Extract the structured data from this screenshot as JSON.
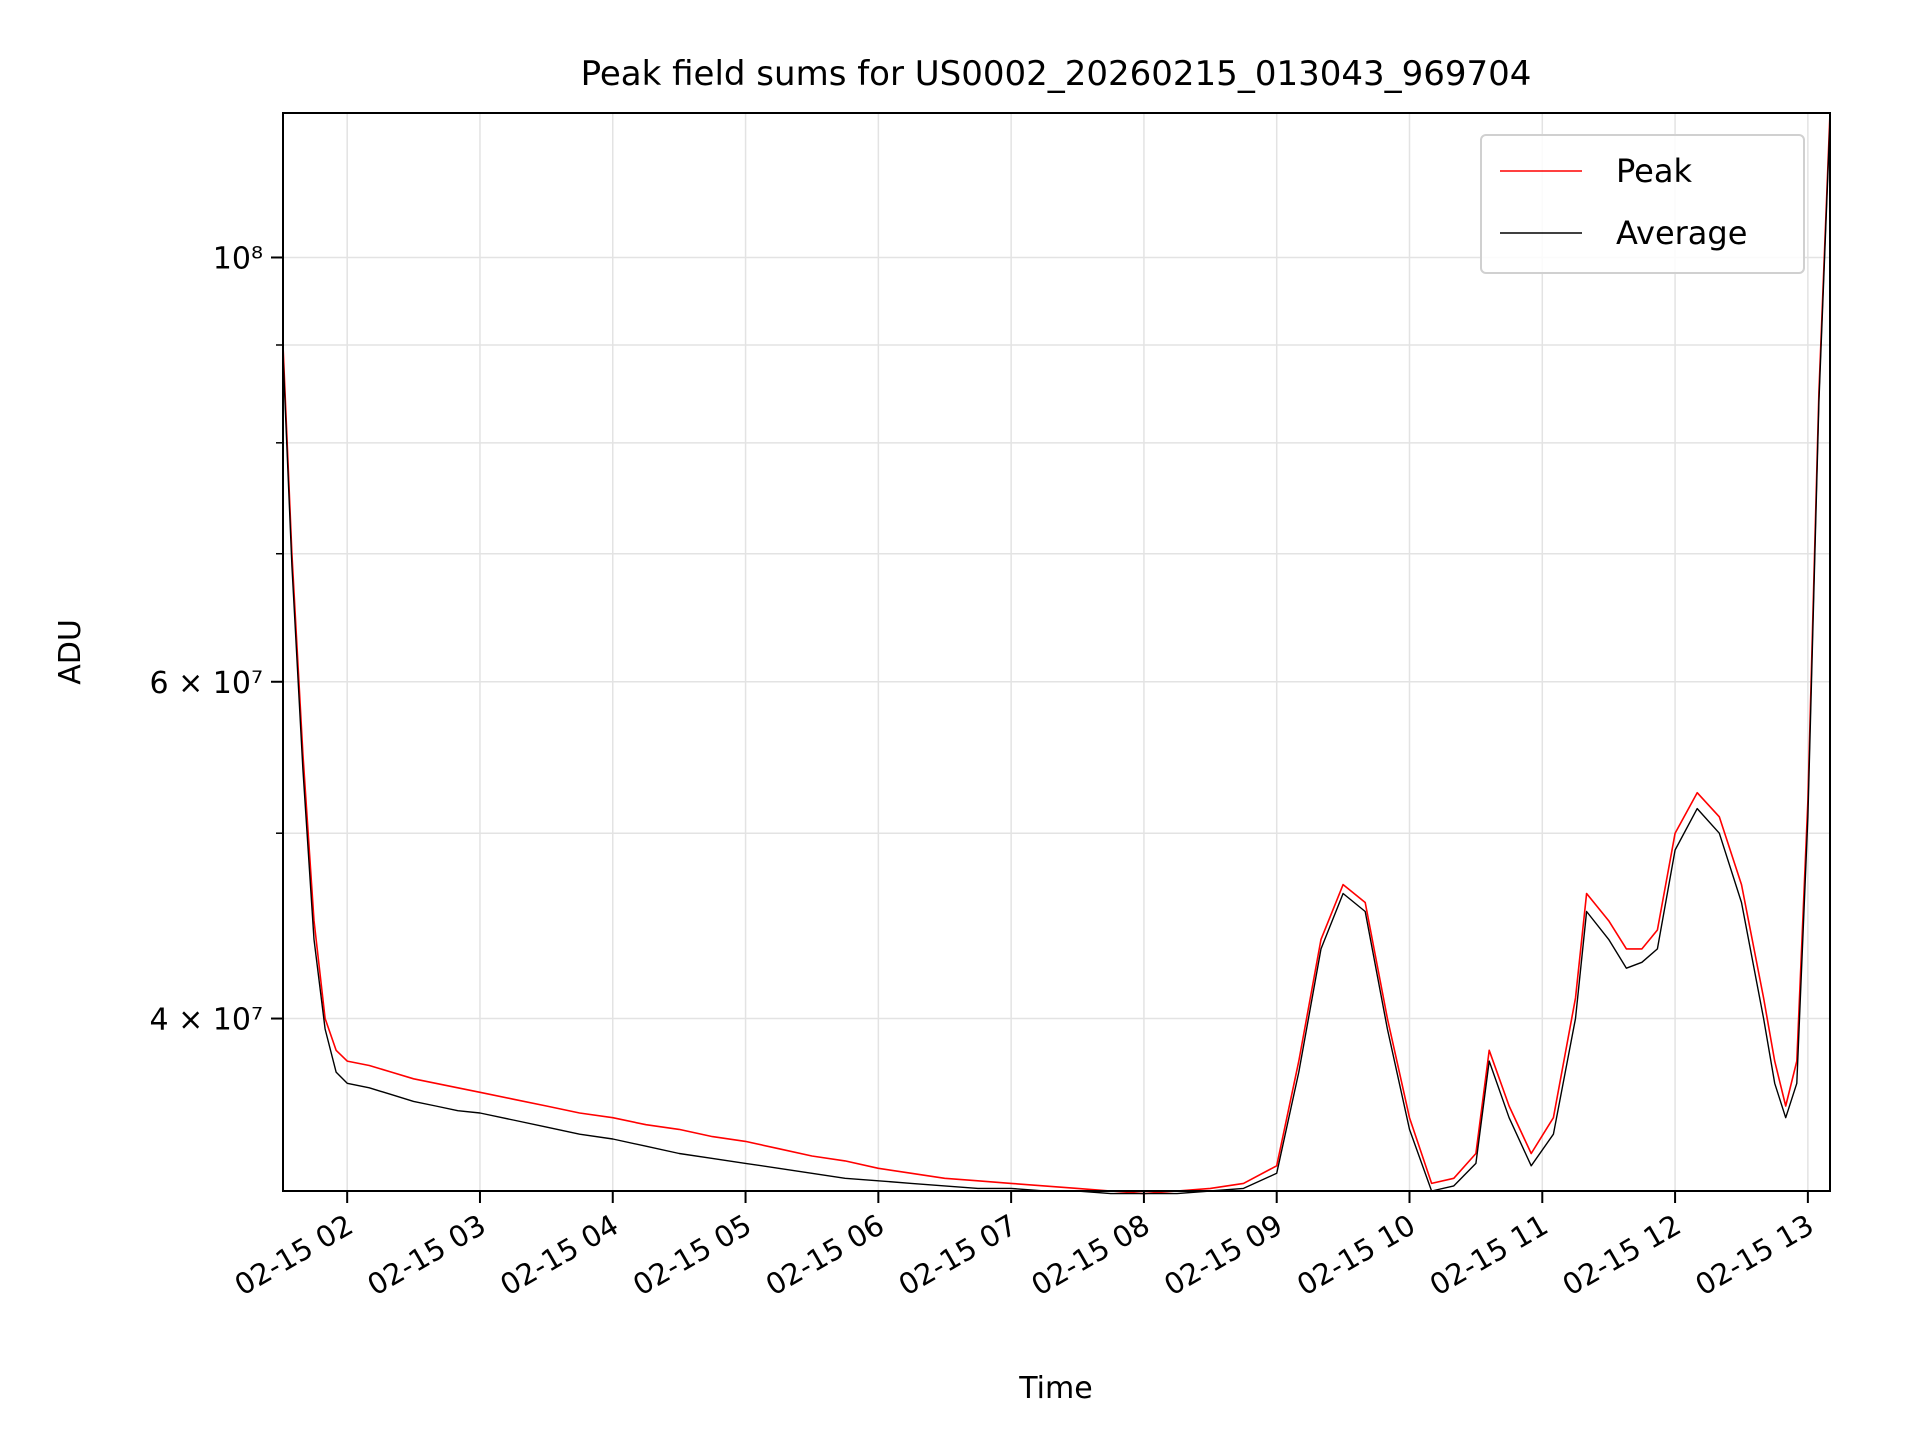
{
  "chart_data": {
    "type": "line",
    "title": "Peak field sums for US0002_20260215_013043_969704",
    "xlabel": "Time",
    "ylabel": "ADU",
    "y_scale": "log",
    "ylim": [
      32500000,
      119000000
    ],
    "xlim": [
      "02-15 01:31",
      "02-15 13:10"
    ],
    "grid": true,
    "legend_position": "top-right",
    "x_ticks": [
      {
        "time": "02-15 02:00",
        "label": "02-15 02"
      },
      {
        "time": "02-15 03:00",
        "label": "02-15 03"
      },
      {
        "time": "02-15 04:00",
        "label": "02-15 04"
      },
      {
        "time": "02-15 05:00",
        "label": "02-15 05"
      },
      {
        "time": "02-15 06:00",
        "label": "02-15 06"
      },
      {
        "time": "02-15 07:00",
        "label": "02-15 07"
      },
      {
        "time": "02-15 08:00",
        "label": "02-15 08"
      },
      {
        "time": "02-15 09:00",
        "label": "02-15 09"
      },
      {
        "time": "02-15 10:00",
        "label": "02-15 10"
      },
      {
        "time": "02-15 11:00",
        "label": "02-15 11"
      },
      {
        "time": "02-15 12:00",
        "label": "02-15 12"
      },
      {
        "time": "02-15 13:00",
        "label": "02-15 13"
      }
    ],
    "y_ticks": [
      {
        "value": 40000000,
        "label": "4 × 10⁷"
      },
      {
        "value": 60000000,
        "label": "6 × 10⁷"
      },
      {
        "value": 100000000,
        "label": "10⁸"
      }
    ],
    "y_minor_ticks": [
      30000000,
      50000000,
      70000000,
      80000000,
      90000000
    ],
    "series": [
      {
        "name": "Peak",
        "color": "#ff0000",
        "x": [
          "02-15 01:31",
          "02-15 01:35",
          "02-15 01:40",
          "02-15 01:45",
          "02-15 01:50",
          "02-15 01:55",
          "02-15 02:00",
          "02-15 02:10",
          "02-15 02:20",
          "02-15 02:30",
          "02-15 02:40",
          "02-15 02:50",
          "02-15 03:00",
          "02-15 03:15",
          "02-15 03:30",
          "02-15 03:45",
          "02-15 04:00",
          "02-15 04:15",
          "02-15 04:30",
          "02-15 04:45",
          "02-15 05:00",
          "02-15 05:15",
          "02-15 05:30",
          "02-15 05:45",
          "02-15 06:00",
          "02-15 06:15",
          "02-15 06:30",
          "02-15 06:45",
          "02-15 07:00",
          "02-15 07:15",
          "02-15 07:30",
          "02-15 07:45",
          "02-15 08:00",
          "02-15 08:15",
          "02-15 08:30",
          "02-15 08:45",
          "02-15 09:00",
          "02-15 09:10",
          "02-15 09:20",
          "02-15 09:30",
          "02-15 09:40",
          "02-15 09:50",
          "02-15 10:00",
          "02-15 10:10",
          "02-15 10:20",
          "02-15 10:30",
          "02-15 10:36",
          "02-15 10:45",
          "02-15 10:55",
          "02-15 11:05",
          "02-15 11:15",
          "02-15 11:20",
          "02-15 11:30",
          "02-15 11:38",
          "02-15 11:45",
          "02-15 11:52",
          "02-15 12:00",
          "02-15 12:10",
          "02-15 12:20",
          "02-15 12:30",
          "02-15 12:40",
          "02-15 12:45",
          "02-15 12:50",
          "02-15 12:55",
          "02-15 13:00",
          "02-15 13:05",
          "02-15 13:10"
        ],
        "y": [
          90000000,
          70000000,
          55000000,
          45000000,
          40000000,
          38500000,
          38000000,
          37800000,
          37500000,
          37200000,
          37000000,
          36800000,
          36600000,
          36300000,
          36000000,
          35700000,
          35500000,
          35200000,
          35000000,
          34700000,
          34500000,
          34200000,
          33900000,
          33700000,
          33400000,
          33200000,
          33000000,
          32900000,
          32800000,
          32700000,
          32600000,
          32500000,
          32400000,
          32500000,
          32600000,
          32800000,
          33500000,
          38000000,
          44000000,
          47000000,
          46000000,
          40000000,
          35500000,
          32800000,
          33000000,
          34000000,
          38500000,
          36000000,
          34000000,
          35500000,
          41000000,
          46500000,
          45000000,
          43500000,
          43500000,
          44500000,
          50000000,
          52500000,
          51000000,
          47000000,
          41000000,
          38000000,
          36000000,
          38000000,
          52000000,
          85000000,
          119000000
        ]
      },
      {
        "name": "Average",
        "color": "#000000",
        "x": [
          "02-15 01:31",
          "02-15 01:35",
          "02-15 01:40",
          "02-15 01:45",
          "02-15 01:50",
          "02-15 01:55",
          "02-15 02:00",
          "02-15 02:10",
          "02-15 02:20",
          "02-15 02:30",
          "02-15 02:40",
          "02-15 02:50",
          "02-15 03:00",
          "02-15 03:15",
          "02-15 03:30",
          "02-15 03:45",
          "02-15 04:00",
          "02-15 04:15",
          "02-15 04:30",
          "02-15 04:45",
          "02-15 05:00",
          "02-15 05:15",
          "02-15 05:30",
          "02-15 05:45",
          "02-15 06:00",
          "02-15 06:15",
          "02-15 06:30",
          "02-15 06:45",
          "02-15 07:00",
          "02-15 07:15",
          "02-15 07:30",
          "02-15 07:45",
          "02-15 08:00",
          "02-15 08:15",
          "02-15 08:30",
          "02-15 08:45",
          "02-15 09:00",
          "02-15 09:10",
          "02-15 09:20",
          "02-15 09:30",
          "02-15 09:40",
          "02-15 09:50",
          "02-15 10:00",
          "02-15 10:10",
          "02-15 10:20",
          "02-15 10:30",
          "02-15 10:36",
          "02-15 10:45",
          "02-15 10:55",
          "02-15 11:05",
          "02-15 11:15",
          "02-15 11:20",
          "02-15 11:30",
          "02-15 11:38",
          "02-15 11:45",
          "02-15 11:52",
          "02-15 12:00",
          "02-15 12:10",
          "02-15 12:20",
          "02-15 12:30",
          "02-15 12:40",
          "02-15 12:45",
          "02-15 12:50",
          "02-15 12:55",
          "02-15 13:00",
          "02-15 13:05",
          "02-15 13:10"
        ],
        "y": [
          89000000,
          69000000,
          54000000,
          44000000,
          39500000,
          37500000,
          37000000,
          36800000,
          36500000,
          36200000,
          36000000,
          35800000,
          35700000,
          35400000,
          35100000,
          34800000,
          34600000,
          34300000,
          34000000,
          33800000,
          33600000,
          33400000,
          33200000,
          33000000,
          32900000,
          32800000,
          32700000,
          32600000,
          32600000,
          32500000,
          32500000,
          32400000,
          32400000,
          32400000,
          32500000,
          32600000,
          33200000,
          37500000,
          43500000,
          46500000,
          45500000,
          39500000,
          35000000,
          32500000,
          32700000,
          33600000,
          38000000,
          35500000,
          33500000,
          34800000,
          40000000,
          45500000,
          44000000,
          42500000,
          42800000,
          43500000,
          49000000,
          51500000,
          50000000,
          46000000,
          40000000,
          37000000,
          35500000,
          37000000,
          51000000,
          84000000,
          118000000
        ]
      }
    ]
  }
}
